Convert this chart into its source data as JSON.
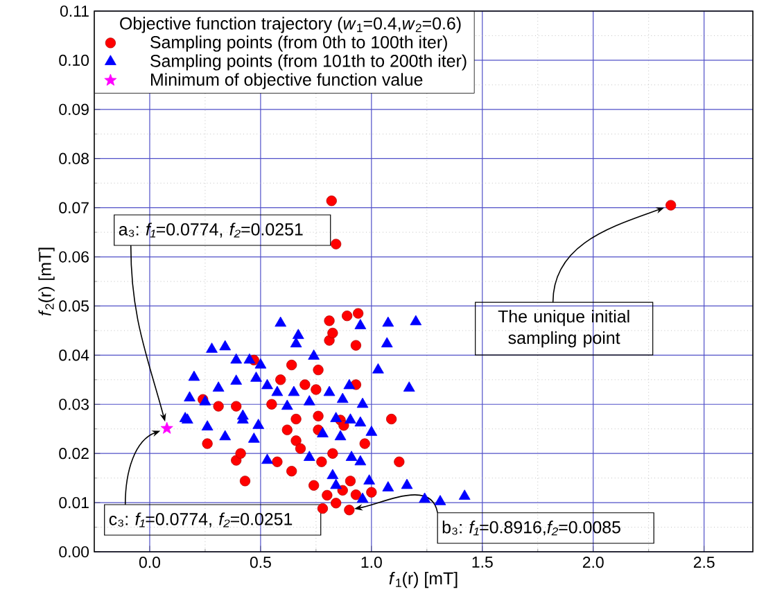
{
  "chart_data": {
    "type": "scatter",
    "xlabel": "*f*$_{1}$(r) [mT]",
    "ylabel": "*f*$_{2}$(r) [mT]",
    "legend_title": "Objective function trajectory (*w*$_{1}$=0.4,*w*$_{2}$=0.6)",
    "legend": "top left",
    "grid": true,
    "xlim": [
      -0.25,
      2.72
    ],
    "ylim": [
      0,
      0.11
    ],
    "xticks": [
      {
        "value": 0,
        "label": "0.0"
      },
      {
        "value": 0.5,
        "label": "0.5"
      },
      {
        "value": 1,
        "label": "1.0"
      },
      {
        "value": 1.5,
        "label": "1.5"
      },
      {
        "value": 2,
        "label": "2.0"
      },
      {
        "value": 2.5,
        "label": "2.5"
      }
    ],
    "yticks": [
      {
        "value": 0,
        "label": "0.00"
      },
      {
        "value": 0.01,
        "label": "0.01"
      },
      {
        "value": 0.02,
        "label": "0.02"
      },
      {
        "value": 0.03,
        "label": "0.03"
      },
      {
        "value": 0.04,
        "label": "0.04"
      },
      {
        "value": 0.05,
        "label": "0.05"
      },
      {
        "value": 0.06,
        "label": "0.06"
      },
      {
        "value": 0.07,
        "label": "0.07"
      },
      {
        "value": 0.08,
        "label": "0.08"
      },
      {
        "value": 0.09,
        "label": "0.09"
      },
      {
        "value": 0.1,
        "label": "0.10"
      },
      {
        "value": 0.11,
        "label": "0.11"
      }
    ],
    "series": [
      {
        "name": "Sampling points (from 0th to 100th iter)",
        "color": "#ff0000",
        "marker": "circle",
        "x": [
          2.35,
          0.82,
          0.84,
          0.81,
          0.89,
          0.94,
          0.81,
          0.825,
          0.93,
          0.64,
          0.76,
          0.47,
          0.59,
          0.7,
          0.75,
          0.93,
          1.09,
          0.31,
          0.39,
          0.24,
          0.66,
          0.76,
          0.86,
          0.64,
          0.39,
          0.575,
          0.74,
          0.78,
          0.84,
          0.9,
          0.93,
          1.125,
          0.775,
          0.825,
          0.905,
          0.62,
          0.76,
          0.43,
          0.875,
          0.41,
          1.0,
          0.66,
          0.26,
          0.55,
          0.68,
          0.97,
          0.8,
          0.87
        ],
        "values": [
          0.0705,
          0.0714,
          0.0626,
          0.047,
          0.048,
          0.0485,
          0.043,
          0.0445,
          0.042,
          0.038,
          0.037,
          0.039,
          0.035,
          0.034,
          0.033,
          0.034,
          0.027,
          0.0296,
          0.0296,
          0.031,
          0.027,
          0.0276,
          0.0268,
          0.0164,
          0.0186,
          0.0183,
          0.0135,
          0.0088,
          0.0099,
          0.0085,
          0.0116,
          0.0183,
          0.0183,
          0.02,
          0.0144,
          0.0248,
          0.0248,
          0.0144,
          0.0257,
          0.02,
          0.0121,
          0.0226,
          0.022,
          0.03,
          0.021,
          0.022,
          0.0115,
          0.0125
        ]
      },
      {
        "name": "Sampling points (from 101th to 200th iter)",
        "color": "#0000ff",
        "marker": "triangle",
        "x": [
          0.59,
          0.67,
          0.66,
          0.95,
          1.075,
          1.2,
          1.07,
          0.74,
          1.03,
          1.17,
          0.28,
          0.34,
          0.39,
          0.45,
          0.5,
          0.2,
          0.31,
          0.39,
          0.48,
          0.53,
          0.575,
          0.65,
          0.81,
          0.9,
          0.18,
          0.25,
          0.42,
          0.49,
          0.62,
          0.72,
          0.87,
          0.96,
          0.17,
          0.84,
          0.95,
          1.0,
          0.16,
          0.26,
          0.34,
          0.42,
          0.47,
          0.53,
          0.72,
          0.825,
          0.91,
          0.95,
          0.99,
          1.075,
          1.16,
          1.24,
          1.31,
          1.42,
          0.96,
          0.84,
          0.78,
          0.86,
          0.905
        ],
        "values": [
          0.0465,
          0.044,
          0.0423,
          0.046,
          0.0465,
          0.0468,
          0.0423,
          0.0398,
          0.037,
          0.0333,
          0.0412,
          0.0417,
          0.039,
          0.039,
          0.038,
          0.0355,
          0.0333,
          0.0347,
          0.0353,
          0.0338,
          0.0324,
          0.0324,
          0.0324,
          0.0338,
          0.0313,
          0.0305,
          0.0276,
          0.0257,
          0.0296,
          0.0305,
          0.031,
          0.03,
          0.0268,
          0.0271,
          0.0262,
          0.0243,
          0.0271,
          0.0254,
          0.0234,
          0.0268,
          0.0229,
          0.0186,
          0.0192,
          0.0155,
          0.0192,
          0.0183,
          0.0144,
          0.013,
          0.0135,
          0.0107,
          0.0102,
          0.0113,
          0.0107,
          0.0135,
          0.024,
          0.0234,
          0.0268
        ]
      },
      {
        "name": "Minimum of objective function value",
        "color": "#ff00ff",
        "marker": "star",
        "x": [
          0.0774
        ],
        "values": [
          0.0251
        ]
      }
    ],
    "annotations": [
      {
        "text": "a₃: *f₁*=0.0774, *f₂*=0.0251",
        "x": 0.0774,
        "y": 0.0251
      },
      {
        "text": "c₃: *f₁*=0.0774, *f₂*=0.0251",
        "x": 0.0774,
        "y": 0.0251
      },
      {
        "text": "b₃: *f₁*=0.8916,*f₂*=0.0085",
        "x": 0.8916,
        "y": 0.0085
      },
      {
        "text": "The unique initial sampling point",
        "x": 2.35,
        "y": 0.0705
      }
    ]
  }
}
